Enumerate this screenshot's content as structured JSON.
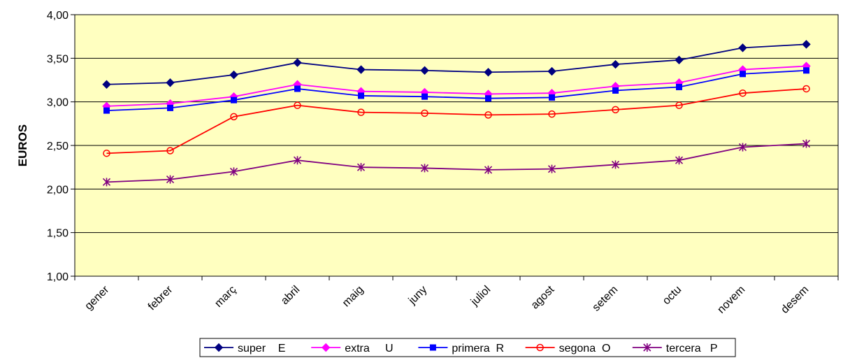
{
  "chart_data": {
    "type": "line",
    "title": "",
    "xlabel": "",
    "ylabel": "EUROS",
    "ylim": [
      1.0,
      4.0
    ],
    "y_ticks": [
      "1,00",
      "1,50",
      "2,00",
      "2,50",
      "3,00",
      "3,50",
      "4,00"
    ],
    "grid": true,
    "legend_position": "bottom",
    "plot_background": "#FFFFC0",
    "categories": [
      "gener",
      "febrer",
      "març",
      "abril",
      "maig",
      "juny",
      "juliol",
      "agost",
      "setem",
      "octu",
      "novem",
      "desem"
    ],
    "series": [
      {
        "name": "super    E",
        "color": "#000080",
        "marker": "diamond",
        "values": [
          3.2,
          3.22,
          3.31,
          3.45,
          3.37,
          3.36,
          3.34,
          3.35,
          3.43,
          3.48,
          3.62,
          3.66
        ]
      },
      {
        "name": "extra     U",
        "color": "#FF00FF",
        "marker": "diamond",
        "values": [
          2.95,
          2.98,
          3.06,
          3.2,
          3.12,
          3.11,
          3.09,
          3.1,
          3.18,
          3.22,
          3.37,
          3.41
        ]
      },
      {
        "name": "primera  R",
        "color": "#0000FF",
        "marker": "square",
        "values": [
          2.9,
          2.93,
          3.02,
          3.15,
          3.07,
          3.06,
          3.04,
          3.05,
          3.13,
          3.17,
          3.32,
          3.36
        ]
      },
      {
        "name": "segona  O",
        "color": "#FF0000",
        "marker": "circle",
        "values": [
          2.41,
          2.44,
          2.83,
          2.96,
          2.88,
          2.87,
          2.85,
          2.86,
          2.91,
          2.96,
          3.1,
          3.15
        ]
      },
      {
        "name": "tercera   P",
        "color": "#800080",
        "marker": "star",
        "values": [
          2.08,
          2.11,
          2.2,
          2.33,
          2.25,
          2.24,
          2.22,
          2.23,
          2.28,
          2.33,
          2.48,
          2.52
        ]
      }
    ]
  }
}
